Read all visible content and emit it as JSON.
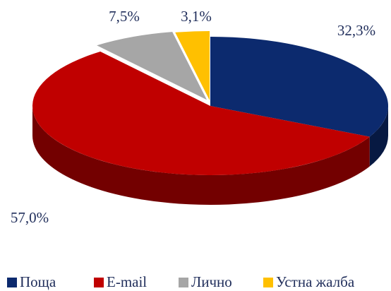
{
  "chart_data": {
    "type": "pie",
    "categories": [
      "Поща",
      "E-mail",
      "Лично",
      "Устна жалба"
    ],
    "values": [
      32.3,
      57.0,
      7.5,
      3.1
    ],
    "value_labels": [
      "32,3%",
      "57,0%",
      "7,5%",
      "3,1%"
    ],
    "colors": [
      "#0c2a6e",
      "#c00000",
      "#a6a6a6",
      "#ffc000"
    ],
    "legend": "bottom"
  }
}
